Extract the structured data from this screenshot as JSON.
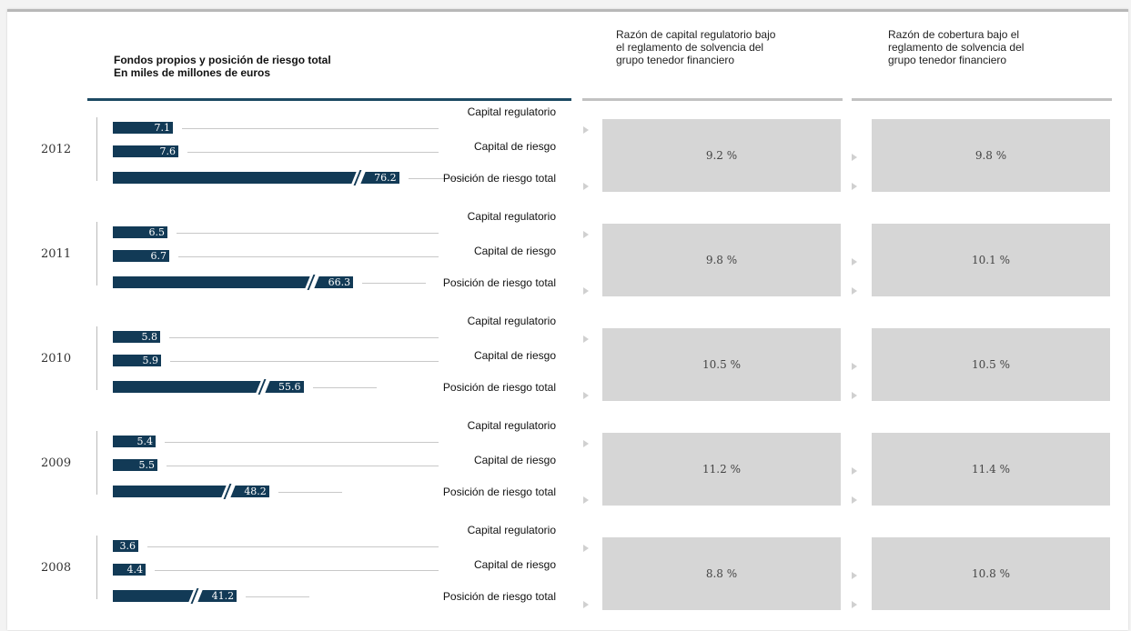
{
  "header": {
    "title_line1": "Fondos propios y posición de riesgo total",
    "title_line2": "En miles de millones de euros",
    "col_regulatory": [
      "Razón de capital regulatorio bajo",
      "el reglamento de solvencia del",
      "grupo tenedor financiero"
    ],
    "col_coverage": [
      "Razón de cobertura bajo el",
      "reglamento de solvencia del",
      "grupo tenedor financiero"
    ]
  },
  "row_labels": {
    "regulatory": "Capital regulatorio",
    "risk": "Capital de riesgo",
    "total": "Posición de riesgo total"
  },
  "colors": {
    "bar": "#123a56",
    "box": "#d6d6d6",
    "rule_dark": "#1d4a63",
    "rule_light": "#c2c2c2"
  },
  "chart_data": {
    "type": "bar",
    "orientation": "horizontal",
    "title": "Fondos propios y posición de riesgo total",
    "subtitle": "En miles de millones de euros",
    "categories": [
      "2012",
      "2011",
      "2010",
      "2009",
      "2008"
    ],
    "series": [
      {
        "name": "Capital regulatorio",
        "values": [
          7.1,
          6.5,
          5.8,
          5.4,
          3.6
        ]
      },
      {
        "name": "Capital de riesgo",
        "values": [
          7.6,
          6.7,
          5.9,
          5.5,
          4.4
        ]
      },
      {
        "name": "Posición de riesgo total",
        "values": [
          76.2,
          66.3,
          55.6,
          48.2,
          41.2
        ],
        "axis_break": true
      }
    ],
    "value_labels": {
      "Capital regulatorio": [
        "7.1",
        "6.5",
        "5.8",
        "5.4",
        "3.6"
      ],
      "Capital de riesgo": [
        "7.6",
        "6.7",
        "5.9",
        "5.5",
        "4.4"
      ],
      "Posición de riesgo total": [
        "76.2",
        "66.3",
        "55.6",
        "48.2",
        "41.2"
      ]
    },
    "ratios": {
      "regulatory_capital_ratio": [
        "9.2 %",
        "9.8 %",
        "10.5 %",
        "11.2 %",
        "8.8 %"
      ],
      "coverage_ratio": [
        "9.8 %",
        "10.1 %",
        "10.5 %",
        "11.4 %",
        "10.8 %"
      ]
    },
    "grid": false,
    "legend": "none"
  }
}
